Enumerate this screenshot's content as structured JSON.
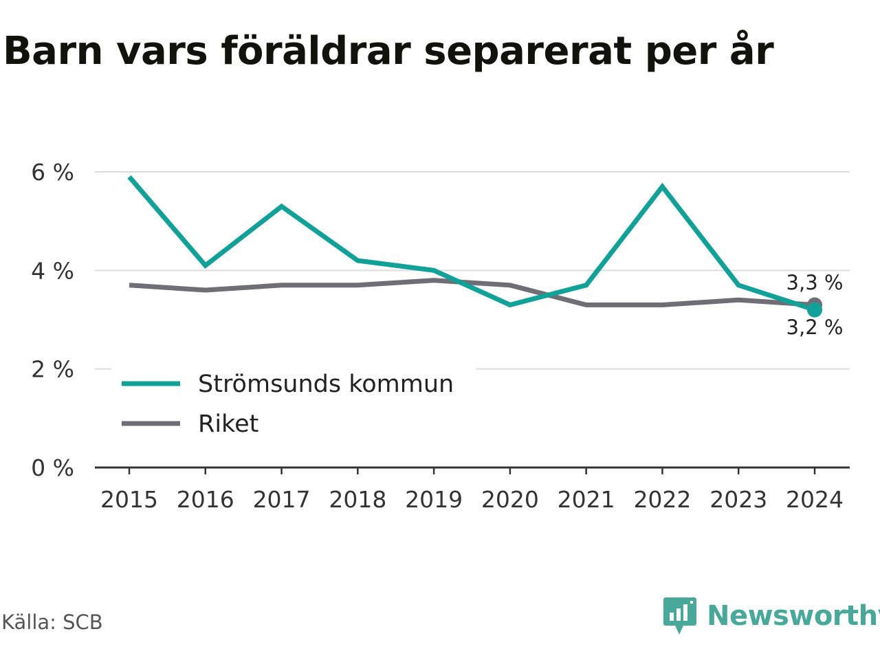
{
  "title": "Barn vars föräldrar separerat per år",
  "source": "Källa: SCB",
  "brand": {
    "name": "Newsworthy",
    "icon": "newsworthy-logo-icon",
    "color": "#48a89a"
  },
  "chart_data": {
    "type": "line",
    "title": "Barn vars föräldrar separerat per år",
    "x": [
      "2015",
      "2016",
      "2017",
      "2018",
      "2019",
      "2020",
      "2021",
      "2022",
      "2023",
      "2024"
    ],
    "ylim": [
      0,
      6
    ],
    "yticks": [
      0,
      2,
      4,
      6
    ],
    "ytick_labels": [
      "0 %",
      "2 %",
      "4 %",
      "6 %"
    ],
    "grid": true,
    "legend_position": "bottom-left",
    "series": [
      {
        "name": "Strömsunds kommun",
        "color": "#12a199",
        "values": [
          5.9,
          4.1,
          5.3,
          4.2,
          4.0,
          3.3,
          3.7,
          5.7,
          3.7,
          3.2
        ],
        "end_label": "3,2 %"
      },
      {
        "name": "Riket",
        "color": "#6f6e75",
        "values": [
          3.7,
          3.6,
          3.7,
          3.7,
          3.8,
          3.7,
          3.3,
          3.3,
          3.4,
          3.3
        ],
        "end_label": "3,3 %"
      }
    ]
  }
}
